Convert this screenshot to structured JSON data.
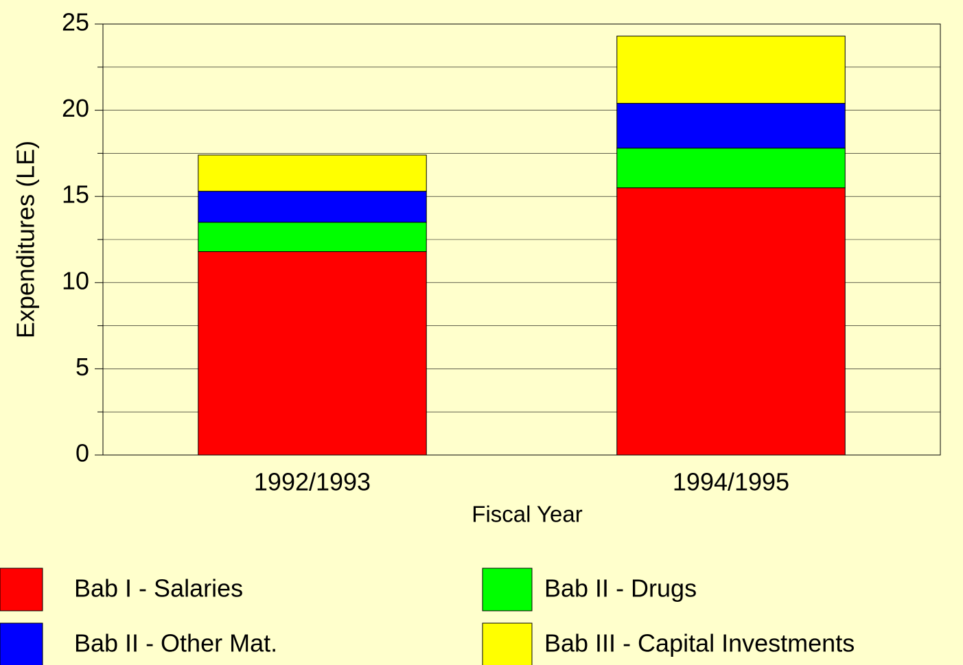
{
  "chart_data": {
    "type": "stacked_bar",
    "categories": [
      "1992/1993",
      "1994/1995"
    ],
    "series": [
      {
        "name": "Bab I - Salaries",
        "color": "#ff0000",
        "values": [
          11.8,
          15.5
        ]
      },
      {
        "name": "Bab II - Drugs",
        "color": "#00ff00",
        "values": [
          1.7,
          2.3
        ]
      },
      {
        "name": "Bab II - Other Mat.",
        "color": "#0000ff",
        "values": [
          1.8,
          2.6
        ]
      },
      {
        "name": "Bab III - Capital Investments",
        "color": "#ffff00",
        "values": [
          2.1,
          3.9
        ]
      }
    ],
    "ylim": [
      0,
      25
    ],
    "yticks": [
      0,
      5,
      10,
      15,
      20,
      25
    ],
    "minor_yticks": [
      2.5,
      7.5,
      12.5,
      17.5,
      22.5
    ],
    "grid": true,
    "xlabel": "Fiscal Year",
    "ylabel": "Expenditures (LE)"
  }
}
